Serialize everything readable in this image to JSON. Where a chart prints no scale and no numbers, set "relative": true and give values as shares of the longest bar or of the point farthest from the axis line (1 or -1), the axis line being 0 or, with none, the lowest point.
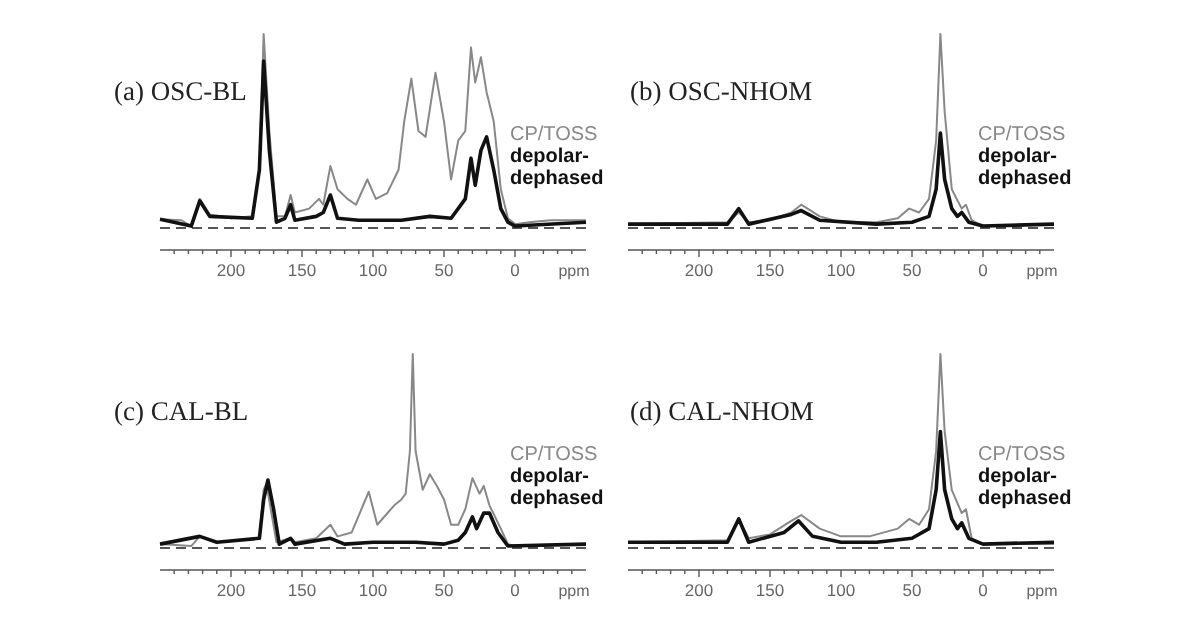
{
  "chart_data": [
    {
      "type": "line",
      "title": "(a) OSC-BL",
      "xlabel": "ppm",
      "relative": true,
      "xlim": [
        250,
        -50
      ],
      "xticks": [
        {
          "value": 240,
          "label": null
        },
        {
          "value": 230,
          "label": null
        },
        {
          "value": 220,
          "label": null
        },
        {
          "value": 210,
          "label": null
        },
        200,
        {
          "value": 190,
          "label": null
        },
        {
          "value": 180,
          "label": null
        },
        {
          "value": 170,
          "label": null
        },
        {
          "value": 160,
          "label": null
        },
        150,
        {
          "value": 140,
          "label": null
        },
        {
          "value": 130,
          "label": null
        },
        {
          "value": 120,
          "label": null
        },
        {
          "value": 110,
          "label": null
        },
        100,
        {
          "value": 90,
          "label": null
        },
        {
          "value": 80,
          "label": null
        },
        {
          "value": 70,
          "label": null
        },
        {
          "value": 60,
          "label": null
        },
        50,
        {
          "value": 40,
          "label": null
        },
        {
          "value": 30,
          "label": null
        },
        {
          "value": 20,
          "label": null
        },
        {
          "value": 10,
          "label": null
        },
        0,
        {
          "value": -10,
          "label": null
        },
        {
          "value": -20,
          "label": null
        },
        {
          "value": -30,
          "label": null
        },
        {
          "value": -40,
          "label": null
        }
      ],
      "legend": "right",
      "ref_lines": [
        {
          "axis": "y",
          "value": 0,
          "line_style": "dashed",
          "color": "#555555"
        }
      ],
      "series": [
        {
          "name": "CP/TOSS",
          "color": "#888888",
          "x": [
            250,
            235,
            228,
            222,
            215,
            200,
            185,
            180,
            177,
            173,
            168,
            162,
            158,
            155,
            145,
            138,
            135,
            130,
            125,
            118,
            112,
            104,
            98,
            90,
            82,
            78,
            73,
            68,
            63,
            56,
            50,
            45,
            40,
            35,
            31,
            28,
            24,
            20,
            15,
            10,
            5,
            0,
            -10,
            -25,
            -50
          ],
          "values": [
            0.045,
            0.04,
            0.01,
            0.15,
            0.07,
            0.05,
            0.06,
            0.3,
            1.0,
            0.5,
            0.06,
            0.06,
            0.17,
            0.08,
            0.1,
            0.15,
            0.12,
            0.32,
            0.2,
            0.15,
            0.12,
            0.25,
            0.15,
            0.18,
            0.3,
            0.55,
            0.77,
            0.5,
            0.47,
            0.8,
            0.55,
            0.25,
            0.45,
            0.5,
            0.93,
            0.75,
            0.88,
            0.7,
            0.55,
            0.2,
            0.05,
            0.02,
            0.03,
            0.04,
            0.04
          ]
        },
        {
          "name": "depolar-dephased",
          "color": "#111111",
          "x": [
            250,
            228,
            222,
            215,
            185,
            180,
            177,
            173,
            168,
            162,
            158,
            155,
            140,
            135,
            130,
            125,
            110,
            80,
            60,
            45,
            35,
            31,
            28,
            24,
            20,
            15,
            10,
            5,
            0,
            -50
          ],
          "values": [
            0.045,
            0.01,
            0.14,
            0.06,
            0.05,
            0.3,
            0.86,
            0.4,
            0.03,
            0.05,
            0.12,
            0.04,
            0.06,
            0.08,
            0.17,
            0.05,
            0.04,
            0.04,
            0.06,
            0.05,
            0.15,
            0.36,
            0.22,
            0.4,
            0.47,
            0.3,
            0.1,
            0.03,
            0.01,
            0.03
          ]
        }
      ]
    },
    {
      "type": "line",
      "title": "(b) OSC-NHOM",
      "xlabel": "ppm",
      "relative": true,
      "xlim": [
        250,
        -50
      ],
      "xticks": [
        {
          "value": 240,
          "label": null
        },
        {
          "value": 230,
          "label": null
        },
        {
          "value": 220,
          "label": null
        },
        {
          "value": 210,
          "label": null
        },
        200,
        {
          "value": 190,
          "label": null
        },
        {
          "value": 180,
          "label": null
        },
        {
          "value": 170,
          "label": null
        },
        {
          "value": 160,
          "label": null
        },
        150,
        {
          "value": 140,
          "label": null
        },
        {
          "value": 130,
          "label": null
        },
        {
          "value": 120,
          "label": null
        },
        {
          "value": 110,
          "label": null
        },
        100,
        {
          "value": 90,
          "label": null
        },
        {
          "value": 80,
          "label": null
        },
        {
          "value": 70,
          "label": null
        },
        {
          "value": 60,
          "label": null
        },
        50,
        {
          "value": 40,
          "label": null
        },
        {
          "value": 30,
          "label": null
        },
        {
          "value": 20,
          "label": null
        },
        {
          "value": 10,
          "label": null
        },
        0,
        {
          "value": -10,
          "label": null
        },
        {
          "value": -20,
          "label": null
        },
        {
          "value": -30,
          "label": null
        },
        {
          "value": -40,
          "label": null
        }
      ],
      "legend": "right",
      "ref_lines": [
        {
          "axis": "y",
          "value": 0,
          "line_style": "dashed",
          "color": "#555555"
        }
      ],
      "series": [
        {
          "name": "CP/TOSS",
          "color": "#888888",
          "x": [
            250,
            180,
            172,
            165,
            150,
            135,
            128,
            115,
            100,
            75,
            60,
            52,
            45,
            38,
            33,
            30,
            27,
            22,
            15,
            12,
            8,
            0,
            -50
          ],
          "values": [
            0.02,
            0.03,
            0.08,
            0.03,
            0.04,
            0.08,
            0.12,
            0.06,
            0.03,
            0.03,
            0.05,
            0.1,
            0.08,
            0.15,
            0.45,
            1.0,
            0.6,
            0.2,
            0.1,
            0.12,
            0.04,
            0.01,
            0.02
          ]
        },
        {
          "name": "depolar-dephased",
          "color": "#111111",
          "x": [
            250,
            180,
            172,
            165,
            135,
            128,
            115,
            75,
            50,
            38,
            33,
            30,
            27,
            22,
            18,
            15,
            10,
            0,
            -50
          ],
          "values": [
            0.02,
            0.02,
            0.1,
            0.02,
            0.07,
            0.09,
            0.04,
            0.02,
            0.03,
            0.06,
            0.2,
            0.49,
            0.25,
            0.1,
            0.06,
            0.08,
            0.03,
            0.01,
            0.02
          ]
        }
      ]
    },
    {
      "type": "line",
      "title": "(c) CAL-BL",
      "xlabel": "ppm",
      "relative": true,
      "xlim": [
        250,
        -50
      ],
      "xticks": [
        {
          "value": 240,
          "label": null
        },
        {
          "value": 230,
          "label": null
        },
        {
          "value": 220,
          "label": null
        },
        {
          "value": 210,
          "label": null
        },
        200,
        {
          "value": 190,
          "label": null
        },
        {
          "value": 180,
          "label": null
        },
        {
          "value": 170,
          "label": null
        },
        {
          "value": 160,
          "label": null
        },
        150,
        {
          "value": 140,
          "label": null
        },
        {
          "value": 130,
          "label": null
        },
        {
          "value": 120,
          "label": null
        },
        {
          "value": 110,
          "label": null
        },
        100,
        {
          "value": 90,
          "label": null
        },
        {
          "value": 80,
          "label": null
        },
        {
          "value": 70,
          "label": null
        },
        {
          "value": 60,
          "label": null
        },
        50,
        {
          "value": 40,
          "label": null
        },
        {
          "value": 30,
          "label": null
        },
        {
          "value": 20,
          "label": null
        },
        {
          "value": 10,
          "label": null
        },
        0,
        {
          "value": -10,
          "label": null
        },
        {
          "value": -20,
          "label": null
        },
        {
          "value": -30,
          "label": null
        },
        {
          "value": -40,
          "label": null
        }
      ],
      "legend": "right",
      "ref_lines": [
        {
          "axis": "y",
          "value": 0,
          "line_style": "dashed",
          "color": "#555555"
        }
      ],
      "series": [
        {
          "name": "CP/TOSS",
          "color": "#888888",
          "x": [
            250,
            228,
            222,
            210,
            180,
            177,
            175,
            172,
            168,
            158,
            155,
            140,
            130,
            125,
            115,
            103,
            97,
            85,
            80,
            77,
            74,
            72,
            70,
            65,
            60,
            55,
            50,
            45,
            40,
            35,
            30,
            25,
            22,
            18,
            10,
            5,
            0,
            -50
          ],
          "values": [
            0.02,
            0.01,
            0.06,
            0.03,
            0.05,
            0.3,
            0.33,
            0.2,
            0.03,
            0.05,
            0.03,
            0.05,
            0.12,
            0.06,
            0.08,
            0.29,
            0.12,
            0.22,
            0.25,
            0.28,
            0.5,
            1.0,
            0.5,
            0.3,
            0.38,
            0.32,
            0.25,
            0.12,
            0.12,
            0.2,
            0.36,
            0.28,
            0.32,
            0.22,
            0.1,
            0.02,
            0.01,
            0.02
          ]
        },
        {
          "name": "depolar-dephased",
          "color": "#111111",
          "x": [
            250,
            222,
            210,
            180,
            177,
            174,
            170,
            166,
            158,
            155,
            130,
            120,
            100,
            70,
            50,
            40,
            35,
            30,
            27,
            22,
            18,
            12,
            5,
            -50
          ],
          "values": [
            0.02,
            0.06,
            0.03,
            0.05,
            0.25,
            0.35,
            0.2,
            0.02,
            0.05,
            0.02,
            0.05,
            0.02,
            0.03,
            0.03,
            0.02,
            0.04,
            0.08,
            0.16,
            0.1,
            0.18,
            0.18,
            0.08,
            0.01,
            0.02
          ]
        }
      ]
    },
    {
      "type": "line",
      "title": "(d) CAL-NHOM",
      "xlabel": "ppm",
      "relative": true,
      "xlim": [
        250,
        -50
      ],
      "xticks": [
        {
          "value": 240,
          "label": null
        },
        {
          "value": 230,
          "label": null
        },
        {
          "value": 220,
          "label": null
        },
        {
          "value": 210,
          "label": null
        },
        200,
        {
          "value": 190,
          "label": null
        },
        {
          "value": 180,
          "label": null
        },
        {
          "value": 170,
          "label": null
        },
        {
          "value": 160,
          "label": null
        },
        150,
        {
          "value": 140,
          "label": null
        },
        {
          "value": 130,
          "label": null
        },
        {
          "value": 120,
          "label": null
        },
        {
          "value": 110,
          "label": null
        },
        100,
        {
          "value": 90,
          "label": null
        },
        {
          "value": 80,
          "label": null
        },
        {
          "value": 70,
          "label": null
        },
        {
          "value": 60,
          "label": null
        },
        50,
        {
          "value": 40,
          "label": null
        },
        {
          "value": 30,
          "label": null
        },
        {
          "value": 20,
          "label": null
        },
        {
          "value": 10,
          "label": null
        },
        0,
        {
          "value": -10,
          "label": null
        },
        {
          "value": -20,
          "label": null
        },
        {
          "value": -30,
          "label": null
        },
        {
          "value": -40,
          "label": null
        }
      ],
      "legend": "right",
      "ref_lines": [
        {
          "axis": "y",
          "value": 0,
          "line_style": "dashed",
          "color": "#555555"
        }
      ],
      "series": [
        {
          "name": "CP/TOSS",
          "color": "#888888",
          "x": [
            250,
            180,
            172,
            165,
            150,
            135,
            128,
            115,
            100,
            80,
            60,
            52,
            45,
            38,
            33,
            30,
            27,
            22,
            15,
            12,
            8,
            0,
            -50
          ],
          "values": [
            0.03,
            0.04,
            0.15,
            0.05,
            0.07,
            0.14,
            0.17,
            0.1,
            0.06,
            0.06,
            0.1,
            0.15,
            0.12,
            0.2,
            0.5,
            1.0,
            0.6,
            0.3,
            0.18,
            0.2,
            0.05,
            0.02,
            0.02
          ]
        },
        {
          "name": "depolar-dephased",
          "color": "#111111",
          "x": [
            250,
            180,
            172,
            165,
            140,
            130,
            120,
            100,
            75,
            50,
            38,
            33,
            30,
            27,
            22,
            18,
            15,
            10,
            0,
            -50
          ],
          "values": [
            0.03,
            0.03,
            0.15,
            0.03,
            0.08,
            0.14,
            0.06,
            0.03,
            0.03,
            0.05,
            0.1,
            0.3,
            0.6,
            0.3,
            0.15,
            0.1,
            0.13,
            0.05,
            0.02,
            0.03
          ]
        }
      ]
    }
  ]
}
